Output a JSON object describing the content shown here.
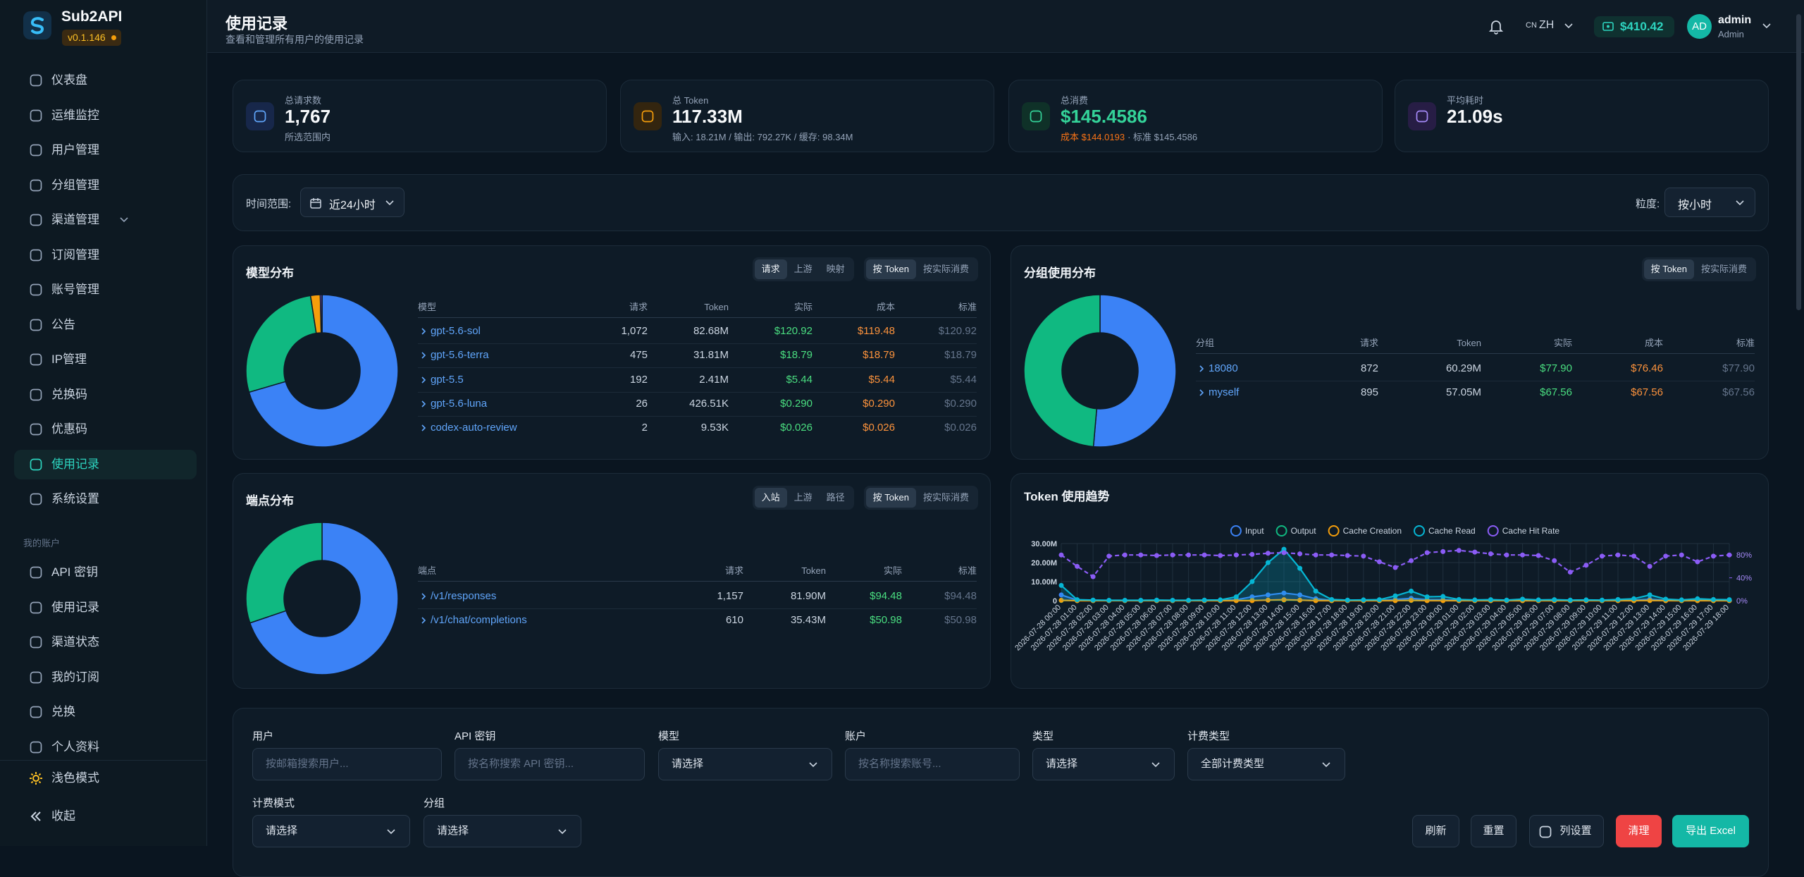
{
  "sidebar": {
    "brand": "Sub2API",
    "version": "v0.1.146",
    "nav": [
      "仪表盘",
      "运维监控",
      "用户管理",
      "分组管理",
      "渠道管理",
      "订阅管理",
      "账号管理",
      "公告",
      "IP管理",
      "兑换码",
      "优惠码",
      "使用记录",
      "系统设置"
    ],
    "section": "我的账户",
    "account_nav": [
      "API 密钥",
      "使用记录",
      "渠道状态",
      "我的订阅",
      "兑换",
      "个人资料"
    ],
    "theme": "浅色模式",
    "collapse": "收起"
  },
  "header": {
    "title": "使用记录",
    "subtitle": "查看和管理所有用户的使用记录",
    "lang_code": "CN",
    "lang": "ZH",
    "balance": "$410.42",
    "avatar": "AD",
    "user": "admin",
    "role": "Admin"
  },
  "stats": [
    {
      "label": "总请求数",
      "value": "1,767",
      "sub": "所选范围内"
    },
    {
      "label": "总 Token",
      "value": "117.33M",
      "sub": "输入: 18.21M / 输出: 792.27K / 缓存: 98.34M"
    },
    {
      "label": "总消费",
      "value": "$145.4586",
      "sub_cost": "成本 $144.0193",
      "sub": "· 标准 $145.4586"
    },
    {
      "label": "平均耗时",
      "value": "21.09s"
    }
  ],
  "range": {
    "label": "时间范围:",
    "value": "近24小时",
    "granularity_label": "粒度:",
    "granularity": "按小时"
  },
  "model_distribution": {
    "title": "模型分布",
    "tabs": [
      "请求",
      "上游",
      "映射"
    ],
    "metric_tabs": [
      "按 Token",
      "按实际消费"
    ],
    "columns": [
      "模型",
      "请求",
      "Token",
      "实际",
      "成本",
      "标准"
    ],
    "rows": [
      [
        "gpt-5.6-sol",
        "1,072",
        "82.68M",
        "$120.92",
        "$119.48",
        "$120.92"
      ],
      [
        "gpt-5.6-terra",
        "475",
        "31.81M",
        "$18.79",
        "$18.79",
        "$18.79"
      ],
      [
        "gpt-5.5",
        "192",
        "2.41M",
        "$5.44",
        "$5.44",
        "$5.44"
      ],
      [
        "gpt-5.6-luna",
        "26",
        "426.51K",
        "$0.290",
        "$0.290",
        "$0.290"
      ],
      [
        "codex-auto-review",
        "2",
        "9.53K",
        "$0.026",
        "$0.026",
        "$0.026"
      ]
    ],
    "colors": [
      "#3b82f6",
      "#10b981",
      "#f59e0b",
      "#8b5cf6",
      "#ec4899"
    ]
  },
  "group_distribution": {
    "title": "分组使用分布",
    "metric_tabs": [
      "按 Token",
      "按实际消费"
    ],
    "columns": [
      "分组",
      "请求",
      "Token",
      "实际",
      "成本",
      "标准"
    ],
    "rows": [
      [
        "18080",
        "872",
        "60.29M",
        "$77.90",
        "$76.46",
        "$77.90"
      ],
      [
        "myself",
        "895",
        "57.05M",
        "$67.56",
        "$67.56",
        "$67.56"
      ]
    ],
    "colors": [
      "#3b82f6",
      "#10b981"
    ]
  },
  "endpoint_distribution": {
    "title": "端点分布",
    "tabs": [
      "入站",
      "上游",
      "路径"
    ],
    "metric_tabs": [
      "按 Token",
      "按实际消费"
    ],
    "columns": [
      "端点",
      "请求",
      "Token",
      "实际",
      "标准"
    ],
    "rows": [
      [
        "/v1/responses",
        "1,157",
        "81.90M",
        "$94.48",
        "$94.48"
      ],
      [
        "/v1/chat/completions",
        "610",
        "35.43M",
        "$50.98",
        "$50.98"
      ]
    ],
    "colors": [
      "#3b82f6",
      "#10b981"
    ]
  },
  "chart_data": {
    "type": "line",
    "title": "Token 使用趋势",
    "x": [
      "2026-07-28 00:00",
      "2026-07-28 01:00",
      "2026-07-28 02:00",
      "2026-07-28 03:00",
      "2026-07-28 04:00",
      "2026-07-28 05:00",
      "2026-07-28 06:00",
      "2026-07-28 07:00",
      "2026-07-28 08:00",
      "2026-07-28 09:00",
      "2026-07-28 10:00",
      "2026-07-28 11:00",
      "2026-07-28 12:00",
      "2026-07-28 13:00",
      "2026-07-28 14:00",
      "2026-07-28 15:00",
      "2026-07-28 16:00",
      "2026-07-28 17:00",
      "2026-07-28 18:00",
      "2026-07-28 19:00",
      "2026-07-28 20:00",
      "2026-07-28 21:00",
      "2026-07-28 22:00",
      "2026-07-28 23:00",
      "2026-07-29 00:00",
      "2026-07-29 01:00",
      "2026-07-29 02:00",
      "2026-07-29 03:00",
      "2026-07-29 04:00",
      "2026-07-29 05:00",
      "2026-07-29 06:00",
      "2026-07-29 07:00",
      "2026-07-29 08:00",
      "2026-07-29 09:00",
      "2026-07-29 10:00",
      "2026-07-29 11:00",
      "2026-07-29 12:00",
      "2026-07-29 13:00",
      "2026-07-29 14:00",
      "2026-07-29 15:00",
      "2026-07-29 16:00",
      "2026-07-29 17:00",
      "2026-07-29 18:00"
    ],
    "series": [
      {
        "name": "Input",
        "color": "#3b82f6",
        "area": true,
        "values": [
          3000000,
          300000,
          100000,
          100000,
          100000,
          100000,
          100000,
          100000,
          100000,
          100000,
          100000,
          500000,
          2000000,
          3000000,
          4000000,
          3000000,
          1000000,
          200000,
          100000,
          100000,
          100000,
          600000,
          1200000,
          500000,
          500000,
          200000,
          100000,
          100000,
          100000,
          200000,
          100000,
          100000,
          100000,
          100000,
          100000,
          200000,
          300000,
          700000,
          200000,
          100000,
          300000,
          200000,
          100000
        ]
      },
      {
        "name": "Output",
        "color": "#10b981",
        "values": [
          100000,
          20000,
          20000,
          20000,
          20000,
          20000,
          20000,
          20000,
          20000,
          20000,
          20000,
          50000,
          150000,
          250000,
          300000,
          200000,
          80000,
          20000,
          20000,
          20000,
          20000,
          50000,
          80000,
          40000,
          40000,
          20000,
          20000,
          20000,
          20000,
          20000,
          20000,
          20000,
          20000,
          20000,
          20000,
          20000,
          30000,
          60000,
          20000,
          20000,
          30000,
          20000,
          20000
        ]
      },
      {
        "name": "Cache Creation",
        "color": "#f59e0b",
        "values": [
          200000,
          0,
          0,
          0,
          0,
          0,
          0,
          0,
          0,
          0,
          0,
          0,
          0,
          300000,
          500000,
          300000,
          0,
          0,
          0,
          0,
          0,
          0,
          200000,
          0,
          0,
          0,
          0,
          0,
          0,
          0,
          0,
          0,
          0,
          0,
          0,
          0,
          0,
          100000,
          0,
          0,
          0,
          0,
          0
        ]
      },
      {
        "name": "Cache Read",
        "color": "#06b6d4",
        "area": true,
        "values": [
          8000000,
          500000,
          300000,
          200000,
          200000,
          200000,
          300000,
          200000,
          200000,
          300000,
          400000,
          2000000,
          10000000,
          20000000,
          27000000,
          17000000,
          5000000,
          600000,
          300000,
          400000,
          500000,
          2500000,
          5000000,
          2000000,
          2200000,
          600000,
          400000,
          500000,
          300000,
          800000,
          400000,
          500000,
          300000,
          400000,
          300000,
          600000,
          1000000,
          3000000,
          800000,
          400000,
          1000000,
          600000,
          500000
        ]
      },
      {
        "name": "Cache Hit Rate",
        "color": "#8b5cf6",
        "axis": "y2",
        "dashed": true,
        "values": [
          80,
          60,
          42,
          78,
          80,
          80,
          79,
          80,
          80,
          80,
          79,
          80,
          81,
          83,
          84,
          82,
          80,
          80,
          79,
          78,
          68,
          58,
          70,
          84,
          86,
          88,
          85,
          82,
          80,
          80,
          79,
          70,
          50,
          62,
          78,
          80,
          78,
          60,
          78,
          80,
          68,
          78,
          80
        ]
      }
    ],
    "ylim": [
      0,
      30000000
    ],
    "yticks": [
      0,
      {
        "value": 10000000,
        "label": "10.00M"
      },
      {
        "value": 20000000,
        "label": "20.00M"
      },
      {
        "value": 30000000,
        "label": "30.00M"
      }
    ],
    "y2lim": [
      0,
      100
    ],
    "y2ticks": [
      {
        "value": 0,
        "label": "0%"
      },
      {
        "value": 40,
        "label": "40%"
      },
      {
        "value": 80,
        "label": "80%"
      }
    ],
    "grid": true
  },
  "filters": [
    {
      "label": "用户",
      "placeholder": "按邮箱搜索用户..."
    },
    {
      "label": "API 密钥",
      "placeholder": "按名称搜索 API 密钥..."
    },
    {
      "label": "模型",
      "value": "请选择"
    },
    {
      "label": "账户",
      "placeholder": "按名称搜索账号..."
    },
    {
      "label": "类型",
      "value": "请选择"
    },
    {
      "label": "计费类型",
      "value": "全部计费类型"
    },
    {
      "label": "计费模式",
      "value": "请选择"
    },
    {
      "label": "分组",
      "value": "请选择"
    }
  ],
  "actions": [
    "刷新",
    "重置",
    "列设置",
    "清理",
    "导出 Excel"
  ]
}
